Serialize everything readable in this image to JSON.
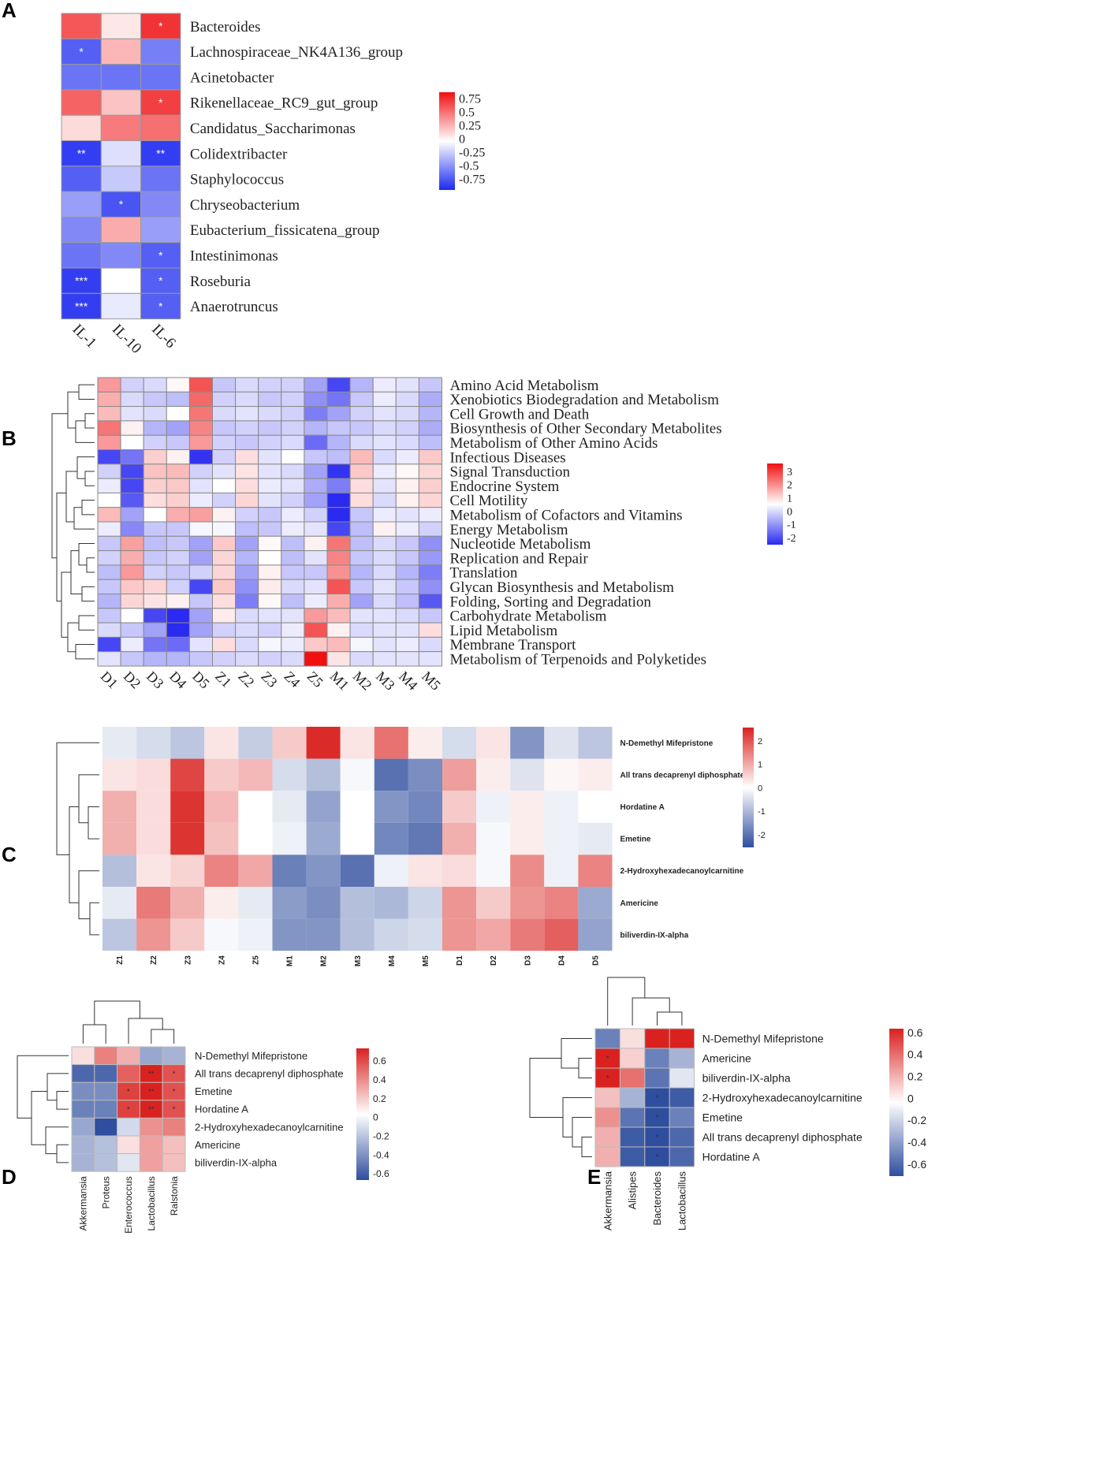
{
  "panels": [
    "A",
    "B",
    "C",
    "D",
    "E"
  ],
  "chart_data": [
    {
      "panel": "A",
      "type": "heatmap",
      "rows": [
        "Bacteroides",
        "Lachnospiraceae_NK4A136_group",
        "Acinetobacter",
        "Rikenellaceae_RC9_gut_group",
        "Candidatus_Saccharimonas",
        "Colidextribacter",
        "Staphylococcus",
        "Chryseobacterium",
        "Eubacterium_fissicatena_group",
        "Intestinimonas",
        "Roseburia",
        "Anaerotruncus"
      ],
      "columns": [
        "IL-1",
        "IL-10",
        "IL-6"
      ],
      "values": [
        [
          0.7,
          0.1,
          0.85
        ],
        [
          -0.75,
          0.3,
          -0.6
        ],
        [
          -0.65,
          -0.65,
          -0.65
        ],
        [
          0.65,
          0.25,
          0.8
        ],
        [
          0.15,
          0.55,
          0.6
        ],
        [
          -0.9,
          -0.15,
          -0.9
        ],
        [
          -0.75,
          -0.25,
          -0.65
        ],
        [
          -0.45,
          -0.8,
          -0.55
        ],
        [
          -0.55,
          0.35,
          -0.45
        ],
        [
          -0.65,
          -0.55,
          -0.75
        ],
        [
          -0.9,
          0.0,
          -0.75
        ],
        [
          -0.9,
          -0.1,
          -0.75
        ]
      ],
      "significance": [
        [
          "",
          "",
          "*"
        ],
        [
          "*",
          "",
          ""
        ],
        [
          "",
          "",
          ""
        ],
        [
          "",
          "",
          "*"
        ],
        [
          "",
          "",
          ""
        ],
        [
          "**",
          "",
          "**"
        ],
        [
          "",
          "",
          ""
        ],
        [
          "",
          "*",
          ""
        ],
        [
          "",
          "",
          ""
        ],
        [
          "",
          "",
          "*"
        ],
        [
          "***",
          "",
          "*"
        ],
        [
          "***",
          "",
          "*"
        ]
      ],
      "color_range": [
        -1,
        1
      ],
      "colors": {
        "low": "#1c29f0",
        "mid": "#ffffff",
        "high": "#f00f12"
      },
      "legend_ticks": [
        "0.75",
        "0.5",
        "0.25",
        "0",
        "-0.25",
        "-0.5",
        "-0.75"
      ]
    },
    {
      "panel": "B",
      "type": "heatmap",
      "rows": [
        "Amino Acid Metabolism",
        "Xenobiotics Biodegradation and Metabolism",
        "Cell Growth and Death",
        "Biosynthesis of Other Secondary Metabolites",
        "Metabolism of Other Amino Acids",
        "Infectious Diseases",
        "Signal Transduction",
        "Endocrine System",
        "Cell Motility",
        "Metabolism of Cofactors and Vitamins",
        "Energy Metabolism",
        "Nucleotide Metabolism",
        "Replication and Repair",
        "Translation",
        "Glycan Biosynthesis and Metabolism",
        "Folding, Sorting and Degradation",
        "Carbohydrate Metabolism",
        "Lipid Metabolism",
        "Membrane Transport",
        "Metabolism of Terpenoids and Polyketides"
      ],
      "columns": [
        "D1",
        "D2",
        "D3",
        "D4",
        "D5",
        "Z1",
        "Z2",
        "Z3",
        "Z4",
        "Z5",
        "M1",
        "M2",
        "M3",
        "M4",
        "M5"
      ],
      "values": [
        [
          1.5,
          -0.5,
          -0.4,
          0.1,
          2.5,
          -0.6,
          -0.4,
          -0.5,
          -0.5,
          -1.0,
          -2.0,
          -0.8,
          -0.2,
          -0.3,
          -0.6
        ],
        [
          1.2,
          -0.4,
          -0.6,
          -0.7,
          2.2,
          -0.5,
          -0.4,
          -0.6,
          -0.5,
          -1.2,
          -1.5,
          -0.6,
          -0.2,
          -0.4,
          -0.9
        ],
        [
          1.0,
          -0.3,
          -0.4,
          0.0,
          2.0,
          -0.4,
          -0.3,
          -0.4,
          -0.5,
          -1.4,
          -1.0,
          -0.5,
          -0.3,
          -0.4,
          -0.8
        ],
        [
          2.0,
          0.2,
          -0.8,
          -1.0,
          1.8,
          -0.6,
          -0.5,
          -0.6,
          -0.5,
          -0.8,
          -0.6,
          -0.6,
          -0.4,
          -0.5,
          -0.9
        ],
        [
          1.5,
          0.0,
          -0.5,
          -0.6,
          1.5,
          -0.5,
          -0.6,
          -0.5,
          -0.4,
          -1.6,
          -0.8,
          -0.4,
          -0.3,
          -0.4,
          -0.7
        ],
        [
          -2.0,
          -1.5,
          0.7,
          0.2,
          -2.2,
          -0.5,
          0.5,
          -0.3,
          0.0,
          -0.6,
          -0.7,
          1.0,
          -0.4,
          -0.2,
          0.8
        ],
        [
          -0.5,
          -2.0,
          0.9,
          1.0,
          -0.5,
          -0.3,
          0.4,
          -0.3,
          -0.4,
          -1.0,
          -2.2,
          0.8,
          -0.2,
          0.1,
          0.6
        ],
        [
          -0.2,
          -2.0,
          0.7,
          0.8,
          -0.3,
          0.0,
          0.5,
          -0.2,
          -0.3,
          -0.9,
          -1.4,
          0.5,
          -0.3,
          0.2,
          0.7
        ],
        [
          0.0,
          -1.8,
          0.5,
          0.7,
          -0.2,
          -0.5,
          0.6,
          -0.3,
          -0.5,
          -1.0,
          -2.8,
          0.5,
          -0.4,
          0.2,
          0.6
        ],
        [
          1.0,
          -1.0,
          0.0,
          1.2,
          1.4,
          0.2,
          -0.5,
          -0.6,
          -0.2,
          -0.5,
          -2.5,
          -0.6,
          -0.2,
          -0.3,
          -0.2
        ],
        [
          -0.2,
          -1.3,
          -0.6,
          -0.6,
          -0.1,
          -0.1,
          -0.7,
          -0.6,
          -0.2,
          -0.3,
          -2.0,
          -0.7,
          0.2,
          -0.2,
          -0.5
        ],
        [
          -0.6,
          1.4,
          -0.7,
          -0.6,
          -1.0,
          0.8,
          -1.0,
          0.1,
          -0.7,
          0.2,
          2.0,
          -0.7,
          -0.4,
          -0.6,
          -1.2
        ],
        [
          -0.5,
          1.2,
          -0.6,
          -0.5,
          -1.0,
          0.6,
          -0.8,
          0.0,
          -0.7,
          -0.3,
          1.8,
          -0.6,
          -0.4,
          -0.6,
          -1.1
        ],
        [
          -0.7,
          1.5,
          -0.5,
          -0.6,
          -0.5,
          0.6,
          -1.0,
          0.2,
          -0.6,
          -0.6,
          1.6,
          -0.8,
          -0.4,
          -0.8,
          -1.4
        ],
        [
          -0.6,
          0.8,
          0.6,
          -0.5,
          -2.0,
          0.8,
          -1.2,
          0.3,
          -0.4,
          -0.3,
          2.5,
          -0.6,
          -0.3,
          -0.6,
          -1.2
        ],
        [
          -0.8,
          0.6,
          0.4,
          0.2,
          -0.6,
          0.5,
          -1.4,
          0.1,
          -0.7,
          -0.2,
          1.2,
          -1.0,
          -0.4,
          -0.7,
          -1.8
        ],
        [
          -0.6,
          0.0,
          -2.0,
          -2.8,
          -1.0,
          0.3,
          -0.4,
          -0.3,
          -0.3,
          1.5,
          1.0,
          -0.3,
          -0.3,
          -0.4,
          -0.6
        ],
        [
          -0.4,
          -0.6,
          -1.0,
          -3.0,
          -1.0,
          -0.5,
          -0.4,
          -0.5,
          -0.2,
          2.5,
          0.2,
          -0.4,
          -0.3,
          -0.3,
          0.5
        ],
        [
          -2.0,
          -0.2,
          -1.5,
          -1.6,
          -0.3,
          0.5,
          -0.4,
          -0.1,
          -0.2,
          0.8,
          1.0,
          -0.1,
          -0.3,
          -0.2,
          -0.4
        ],
        [
          -0.3,
          -0.6,
          -0.8,
          -0.8,
          -0.6,
          -0.5,
          -0.4,
          -0.5,
          -0.4,
          3.5,
          0.4,
          -0.4,
          -0.3,
          -0.3,
          -0.3
        ]
      ],
      "color_range": [
        -2.3,
        3.5
      ],
      "colors": {
        "low": "#2a2af0",
        "mid": "#ffffff",
        "high": "#f01010"
      },
      "legend_ticks": [
        "3",
        "2",
        "1",
        "0",
        "-1",
        "-2"
      ]
    },
    {
      "panel": "C",
      "type": "heatmap",
      "rows": [
        "N-Demethyl Mifepristone",
        "All trans decaprenyl diphosphate",
        "Hordatine A",
        "Emetine",
        "2-Hydroxyhexadecanoylcarnitine",
        "Americine",
        "biliverdin-IX-alpha"
      ],
      "columns": [
        "Z1",
        "Z2",
        "Z3",
        "Z4",
        "Z5",
        "M1",
        "M2",
        "M3",
        "M4",
        "M5",
        "D1",
        "D2",
        "D3",
        "D4",
        "D5"
      ],
      "values": [
        [
          -0.3,
          -0.5,
          -0.8,
          0.3,
          -0.7,
          0.6,
          2.4,
          0.3,
          1.6,
          0.2,
          -0.5,
          0.3,
          -1.5,
          -0.4,
          -0.8
        ],
        [
          0.3,
          0.4,
          2.1,
          0.6,
          0.8,
          -0.5,
          -0.9,
          -0.1,
          -2.0,
          -1.6,
          1.1,
          0.2,
          -0.4,
          0.1,
          0.2
        ],
        [
          0.9,
          0.4,
          2.3,
          0.8,
          0.0,
          -0.3,
          -1.3,
          0.0,
          -1.5,
          -1.7,
          0.6,
          -0.2,
          0.2,
          -0.2,
          0.0
        ],
        [
          0.9,
          0.4,
          2.3,
          0.7,
          0.0,
          -0.2,
          -1.2,
          0.0,
          -1.7,
          -1.9,
          0.9,
          -0.1,
          0.2,
          -0.2,
          -0.3
        ],
        [
          -0.9,
          0.3,
          0.5,
          1.4,
          1.0,
          -1.8,
          -1.5,
          -2.0,
          -0.2,
          0.3,
          0.4,
          -0.1,
          1.3,
          -0.2,
          1.4
        ],
        [
          -0.3,
          1.5,
          0.9,
          0.2,
          -0.3,
          -1.4,
          -1.6,
          -0.9,
          -1.0,
          -0.6,
          1.2,
          0.6,
          1.2,
          1.4,
          -1.2
        ],
        [
          -0.8,
          1.2,
          0.6,
          -0.1,
          -0.2,
          -1.5,
          -1.5,
          -0.9,
          -0.6,
          -0.5,
          1.2,
          1.0,
          1.5,
          1.8,
          -1.3
        ]
      ],
      "color_range": [
        -2.5,
        2.5
      ],
      "colors": {
        "low": "#2f4e9e",
        "mid": "#ffffff",
        "high": "#d9221f"
      },
      "legend_ticks": [
        "2",
        "1",
        "0",
        "-1",
        "-2"
      ]
    },
    {
      "panel": "D",
      "type": "heatmap",
      "rows": [
        "N-Demethyl Mifepristone",
        "All trans decaprenyl diphosphate",
        "Emetine",
        "Hordatine A",
        "2-Hydroxyhexadecanoylcarnitine",
        "Americine",
        "biliverdin-IX-alpha"
      ],
      "columns": [
        "Akkermansia",
        "Proteus",
        "Enterococcus",
        "Lactobacillus",
        "Ralstonia"
      ],
      "values": [
        [
          0.1,
          0.4,
          0.25,
          -0.35,
          -0.3
        ],
        [
          -0.6,
          -0.6,
          0.5,
          0.7,
          0.55
        ],
        [
          -0.45,
          -0.45,
          0.6,
          0.7,
          0.55
        ],
        [
          -0.5,
          -0.5,
          0.6,
          0.7,
          0.55
        ],
        [
          -0.35,
          -0.7,
          -0.15,
          0.35,
          0.4
        ],
        [
          -0.3,
          -0.25,
          0.1,
          0.3,
          0.2
        ],
        [
          -0.3,
          -0.25,
          -0.1,
          0.3,
          0.2
        ]
      ],
      "significance": [
        [
          "",
          "",
          "",
          "",
          ""
        ],
        [
          "",
          "",
          "",
          "**",
          "*"
        ],
        [
          "",
          "",
          "*",
          "**",
          "*"
        ],
        [
          "",
          "",
          "*",
          "**",
          "*"
        ],
        [
          "",
          "",
          "",
          "",
          ""
        ],
        [
          "",
          "",
          "",
          "",
          ""
        ],
        [
          "",
          "",
          "",
          "",
          ""
        ]
      ],
      "color_range": [
        -0.7,
        0.7
      ],
      "colors": {
        "low": "#2f4e9e",
        "mid": "#ffffff",
        "high": "#d9221f"
      },
      "legend_ticks": [
        "0.6",
        "0.4",
        "0.2",
        "0",
        "-0.2",
        "-0.4",
        "-0.6"
      ]
    },
    {
      "panel": "E",
      "type": "heatmap",
      "rows": [
        "N-Demethyl Mifepristone",
        "Americine",
        "biliverdin-IX-alpha",
        "2-Hydroxyhexadecanoylcarnitine",
        "Emetine",
        "All trans decaprenyl diphosphate",
        "Hordatine A"
      ],
      "columns": [
        "Akkermansia",
        "Alistipes",
        "Bacteroides",
        "Lactobacillus"
      ],
      "values": [
        [
          -0.5,
          0.1,
          0.7,
          0.7
        ],
        [
          0.7,
          0.15,
          -0.5,
          -0.3
        ],
        [
          0.7,
          0.45,
          -0.55,
          -0.1
        ],
        [
          0.2,
          -0.3,
          -0.7,
          -0.65
        ],
        [
          0.35,
          -0.55,
          -0.7,
          -0.5
        ],
        [
          0.25,
          -0.65,
          -0.7,
          -0.6
        ],
        [
          0.25,
          -0.65,
          -0.7,
          -0.6
        ]
      ],
      "significance": [
        [
          "",
          "",
          "",
          ""
        ],
        [
          "*",
          "",
          "",
          ""
        ],
        [
          "*",
          "",
          "",
          ""
        ],
        [
          "",
          "",
          "*",
          ""
        ],
        [
          "",
          "",
          "*",
          ""
        ],
        [
          "",
          "",
          "*",
          ""
        ],
        [
          "",
          "",
          "*",
          ""
        ]
      ],
      "color_range": [
        -0.7,
        0.7
      ],
      "colors": {
        "low": "#2f4e9e",
        "mid": "#ffffff",
        "high": "#d9221f"
      },
      "legend_ticks": [
        "0.6",
        "0.4",
        "0.2",
        "0",
        "-0.2",
        "-0.4",
        "-0.6"
      ]
    }
  ]
}
